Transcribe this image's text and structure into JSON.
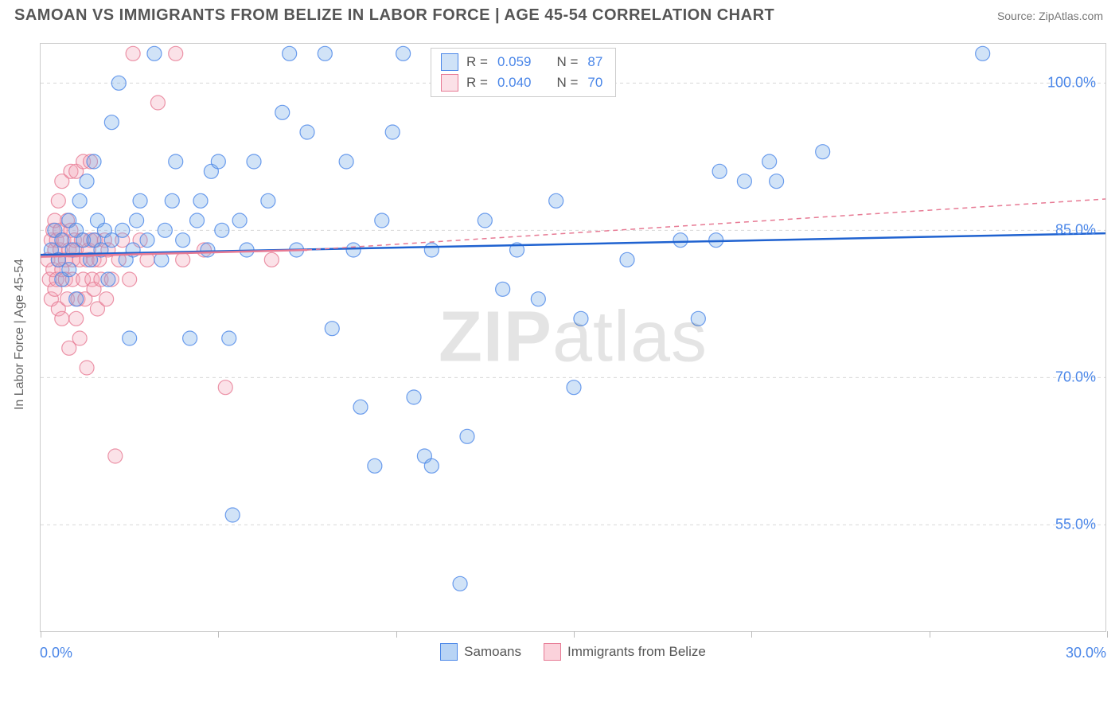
{
  "title": "SAMOAN VS IMMIGRANTS FROM BELIZE IN LABOR FORCE | AGE 45-54 CORRELATION CHART",
  "source": "Source: ZipAtlas.com",
  "watermark_a": "ZIP",
  "watermark_b": "atlas",
  "y_axis_title": "In Labor Force | Age 45-54",
  "chart": {
    "type": "scatter",
    "background_color": "#ffffff",
    "grid_color": "#d8d8d8",
    "border_color": "#cccccc",
    "xlim": [
      0,
      30
    ],
    "ylim": [
      44,
      104
    ],
    "x_ticks": [
      0,
      5,
      10,
      15,
      20,
      25,
      30
    ],
    "x_tick_labels": {
      "0": "0.0%",
      "30": "30.0%"
    },
    "y_ticks": [
      55,
      70,
      85,
      100
    ],
    "y_tick_labels": {
      "55": "55.0%",
      "70": "70.0%",
      "85": "85.0%",
      "100": "100.0%"
    },
    "marker_radius": 9,
    "marker_fill_opacity": 0.32,
    "marker_stroke_opacity": 0.8,
    "marker_stroke_width": 1.2,
    "label_color": "#4a86e8",
    "axis_label_fontsize": 18,
    "trendline_width_solid": 2.5,
    "trendline_width_dash": 1.5,
    "dash_pattern": "6,5"
  },
  "series": [
    {
      "name": "Samoans",
      "color": "#6fa8e6",
      "stroke": "#4a86e8",
      "trend_color": "#1f62d0",
      "R": "0.059",
      "N": "87",
      "trendline_solid": {
        "x1": 0,
        "y1": 82.5,
        "x2": 30,
        "y2": 84.7
      },
      "trendline_dash": null,
      "points": [
        [
          0.3,
          83
        ],
        [
          0.4,
          85
        ],
        [
          0.5,
          82
        ],
        [
          0.6,
          80
        ],
        [
          0.6,
          84
        ],
        [
          0.8,
          86
        ],
        [
          0.8,
          81
        ],
        [
          0.9,
          83
        ],
        [
          1.0,
          78
        ],
        [
          1.0,
          85
        ],
        [
          1.1,
          88
        ],
        [
          1.2,
          84
        ],
        [
          1.3,
          90
        ],
        [
          1.4,
          82
        ],
        [
          1.5,
          92
        ],
        [
          1.5,
          84
        ],
        [
          1.6,
          86
        ],
        [
          1.7,
          83
        ],
        [
          1.8,
          85
        ],
        [
          1.9,
          80
        ],
        [
          2.0,
          84
        ],
        [
          2.0,
          96
        ],
        [
          2.2,
          100
        ],
        [
          2.3,
          85
        ],
        [
          2.4,
          82
        ],
        [
          2.5,
          74
        ],
        [
          2.6,
          83
        ],
        [
          2.7,
          86
        ],
        [
          2.8,
          88
        ],
        [
          3.0,
          84
        ],
        [
          3.2,
          103
        ],
        [
          3.4,
          82
        ],
        [
          3.5,
          85
        ],
        [
          3.7,
          88
        ],
        [
          3.8,
          92
        ],
        [
          4.0,
          84
        ],
        [
          4.2,
          74
        ],
        [
          4.4,
          86
        ],
        [
          4.5,
          88
        ],
        [
          4.7,
          83
        ],
        [
          4.8,
          91
        ],
        [
          5.0,
          92
        ],
        [
          5.1,
          85
        ],
        [
          5.3,
          74
        ],
        [
          5.4,
          56
        ],
        [
          5.6,
          86
        ],
        [
          5.8,
          83
        ],
        [
          6.0,
          92
        ],
        [
          6.4,
          88
        ],
        [
          6.8,
          97
        ],
        [
          7.0,
          103
        ],
        [
          7.2,
          83
        ],
        [
          7.5,
          95
        ],
        [
          8.0,
          103
        ],
        [
          8.2,
          75
        ],
        [
          8.6,
          92
        ],
        [
          8.8,
          83
        ],
        [
          9.0,
          67
        ],
        [
          9.4,
          61
        ],
        [
          9.6,
          86
        ],
        [
          9.9,
          95
        ],
        [
          10.2,
          103
        ],
        [
          10.5,
          68
        ],
        [
          10.8,
          62
        ],
        [
          11.0,
          83
        ],
        [
          11.0,
          61
        ],
        [
          11.5,
          100
        ],
        [
          11.8,
          49
        ],
        [
          12.0,
          64
        ],
        [
          12.5,
          86
        ],
        [
          13.0,
          79
        ],
        [
          13.4,
          83
        ],
        [
          14.0,
          78
        ],
        [
          14.5,
          88
        ],
        [
          15.0,
          69
        ],
        [
          15.2,
          76
        ],
        [
          16.5,
          82
        ],
        [
          18.0,
          84
        ],
        [
          18.5,
          76
        ],
        [
          19.0,
          84
        ],
        [
          19.1,
          91
        ],
        [
          19.8,
          90
        ],
        [
          20.5,
          92
        ],
        [
          20.7,
          90
        ],
        [
          22.0,
          93
        ],
        [
          26.5,
          103
        ]
      ]
    },
    {
      "name": "Immigrants from Belize",
      "color": "#f4a6b8",
      "stroke": "#e77a94",
      "trend_color": "#e77a94",
      "R": "0.040",
      "N": "70",
      "trendline_solid": {
        "x1": 0,
        "y1": 82.3,
        "x2": 7.5,
        "y2": 83.0
      },
      "trendline_dash": {
        "x1": 7.5,
        "y1": 83.0,
        "x2": 30,
        "y2": 88.2
      },
      "points": [
        [
          0.2,
          82
        ],
        [
          0.25,
          80
        ],
        [
          0.3,
          84
        ],
        [
          0.3,
          78
        ],
        [
          0.35,
          85
        ],
        [
          0.35,
          81
        ],
        [
          0.4,
          83
        ],
        [
          0.4,
          86
        ],
        [
          0.4,
          79
        ],
        [
          0.45,
          84
        ],
        [
          0.45,
          80
        ],
        [
          0.5,
          82
        ],
        [
          0.5,
          88
        ],
        [
          0.5,
          77
        ],
        [
          0.55,
          85
        ],
        [
          0.55,
          83
        ],
        [
          0.6,
          81
        ],
        [
          0.6,
          90
        ],
        [
          0.6,
          76
        ],
        [
          0.65,
          84
        ],
        [
          0.7,
          82
        ],
        [
          0.7,
          80
        ],
        [
          0.75,
          86
        ],
        [
          0.75,
          78
        ],
        [
          0.8,
          83
        ],
        [
          0.8,
          73
        ],
        [
          0.85,
          85
        ],
        [
          0.85,
          91
        ],
        [
          0.9,
          82
        ],
        [
          0.9,
          80
        ],
        [
          0.95,
          84
        ],
        [
          1.0,
          76
        ],
        [
          1.0,
          83
        ],
        [
          1.0,
          91
        ],
        [
          1.05,
          78
        ],
        [
          1.1,
          82
        ],
        [
          1.1,
          74
        ],
        [
          1.15,
          84
        ],
        [
          1.2,
          80
        ],
        [
          1.2,
          92
        ],
        [
          1.25,
          78
        ],
        [
          1.3,
          82
        ],
        [
          1.3,
          71
        ],
        [
          1.35,
          83
        ],
        [
          1.4,
          84
        ],
        [
          1.4,
          92
        ],
        [
          1.45,
          80
        ],
        [
          1.5,
          82
        ],
        [
          1.5,
          79
        ],
        [
          1.55,
          84
        ],
        [
          1.6,
          77
        ],
        [
          1.65,
          82
        ],
        [
          1.7,
          80
        ],
        [
          1.8,
          84
        ],
        [
          1.85,
          78
        ],
        [
          1.9,
          83
        ],
        [
          2.0,
          80
        ],
        [
          2.1,
          62
        ],
        [
          2.2,
          82
        ],
        [
          2.3,
          84
        ],
        [
          2.5,
          80
        ],
        [
          2.6,
          103
        ],
        [
          2.8,
          84
        ],
        [
          3.0,
          82
        ],
        [
          3.3,
          98
        ],
        [
          3.8,
          103
        ],
        [
          4.0,
          82
        ],
        [
          4.6,
          83
        ],
        [
          5.2,
          69
        ],
        [
          6.5,
          82
        ]
      ]
    }
  ],
  "legend_top": {
    "r_label": "R =",
    "n_label": "N ="
  },
  "legend_bottom": [
    {
      "label": "Samoans",
      "fill": "#b8d4f5",
      "stroke": "#4a86e8"
    },
    {
      "label": "Immigrants from Belize",
      "fill": "#fbd2db",
      "stroke": "#e77a94"
    }
  ]
}
